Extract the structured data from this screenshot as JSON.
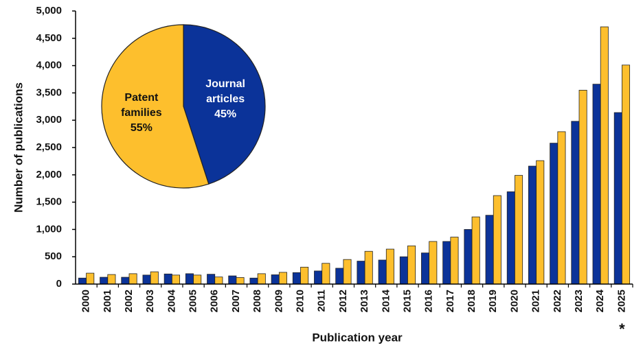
{
  "chart_data": [
    {
      "type": "bar",
      "y_label": "Number of publications",
      "x_label": "Publication year",
      "annotation": "*",
      "categories": [
        "2000",
        "2001",
        "2002",
        "2003",
        "2004",
        "2005",
        "2006",
        "2007",
        "2008",
        "2009",
        "2010",
        "2011",
        "2012",
        "2013",
        "2014",
        "2015",
        "2016",
        "2017",
        "2018",
        "2019",
        "2020",
        "2021",
        "2022",
        "2023",
        "2024",
        "2025"
      ],
      "series": [
        {
          "color": "#0b3399",
          "values": [
            110,
            125,
            125,
            165,
            185,
            190,
            180,
            150,
            110,
            170,
            210,
            240,
            290,
            420,
            440,
            500,
            570,
            780,
            1000,
            1260,
            1690,
            2160,
            2580,
            2980,
            3660,
            3140
          ]
        },
        {
          "color": "#fdbf2d",
          "values": [
            200,
            175,
            190,
            225,
            165,
            165,
            130,
            120,
            190,
            215,
            310,
            380,
            450,
            600,
            640,
            700,
            780,
            860,
            1230,
            1620,
            1990,
            2260,
            2790,
            3550,
            4710,
            4010
          ]
        }
      ],
      "ylim": [
        0,
        5000
      ],
      "yticks": [
        0,
        {
          "value": 500,
          "label": "500"
        },
        {
          "value": 1000,
          "label": "1,000"
        },
        {
          "value": 1500,
          "label": "1,500"
        },
        {
          "value": 2000,
          "label": "2,000"
        },
        {
          "value": 2500,
          "label": "2,500"
        },
        {
          "value": 3000,
          "label": "3,000"
        },
        {
          "value": 3500,
          "label": "3,500"
        },
        {
          "value": 4000,
          "label": "4,000"
        },
        {
          "value": 4500,
          "label": "4,500"
        },
        {
          "value": 5000,
          "label": "5,000"
        }
      ]
    },
    {
      "type": "pie",
      "labels": [
        "Journal articles",
        "Patent families"
      ],
      "values": [
        45,
        55
      ],
      "value_labels": [
        "45%",
        "55%"
      ],
      "colors": [
        "#0b3399",
        "#fdbf2d"
      ]
    }
  ]
}
